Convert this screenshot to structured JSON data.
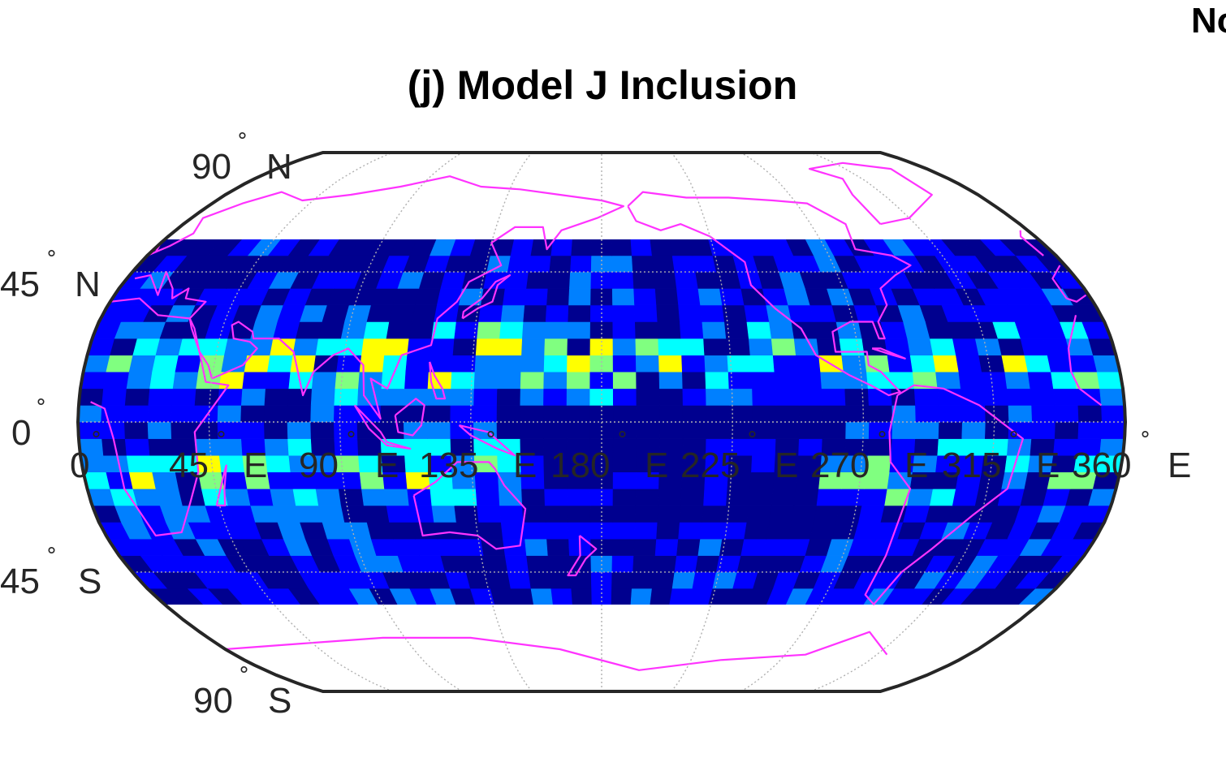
{
  "figure": {
    "panel_title": "(j) Model J Inclusion",
    "corner_text": "No"
  },
  "map": {
    "projection": "robinson-like",
    "lat_range": [
      -90,
      90
    ],
    "lon_range": [
      0,
      360
    ],
    "data_lat_range": [
      -55,
      55
    ],
    "data_lon_range": [
      0,
      360
    ],
    "grid_style": "dotted",
    "coastline_color": "#ff33ff",
    "frame_color": "#262626",
    "colormap": [
      "#00008f",
      "#0000ff",
      "#0080ff",
      "#00ffff",
      "#80ff80",
      "#ffff00"
    ],
    "lat_labels": [
      {
        "text": "90",
        "hemi": "N"
      },
      {
        "text": "45",
        "hemi": "N"
      },
      {
        "text": "0",
        "hemi": ""
      },
      {
        "text": "45",
        "hemi": "S"
      },
      {
        "text": "90",
        "hemi": "S"
      }
    ],
    "lon_labels": [
      {
        "text": "0",
        "hemi": ""
      },
      {
        "text": "45",
        "hemi": "E"
      },
      {
        "text": "90",
        "hemi": "E"
      },
      {
        "text": "135",
        "hemi": "E"
      },
      {
        "text": "180",
        "hemi": "E"
      },
      {
        "text": "225",
        "hemi": "E"
      },
      {
        "text": "270",
        "hemi": "E"
      },
      {
        "text": "315",
        "hemi": "E"
      },
      {
        "text": "360",
        "hemi": "E"
      }
    ],
    "degree_symbol": "°"
  }
}
